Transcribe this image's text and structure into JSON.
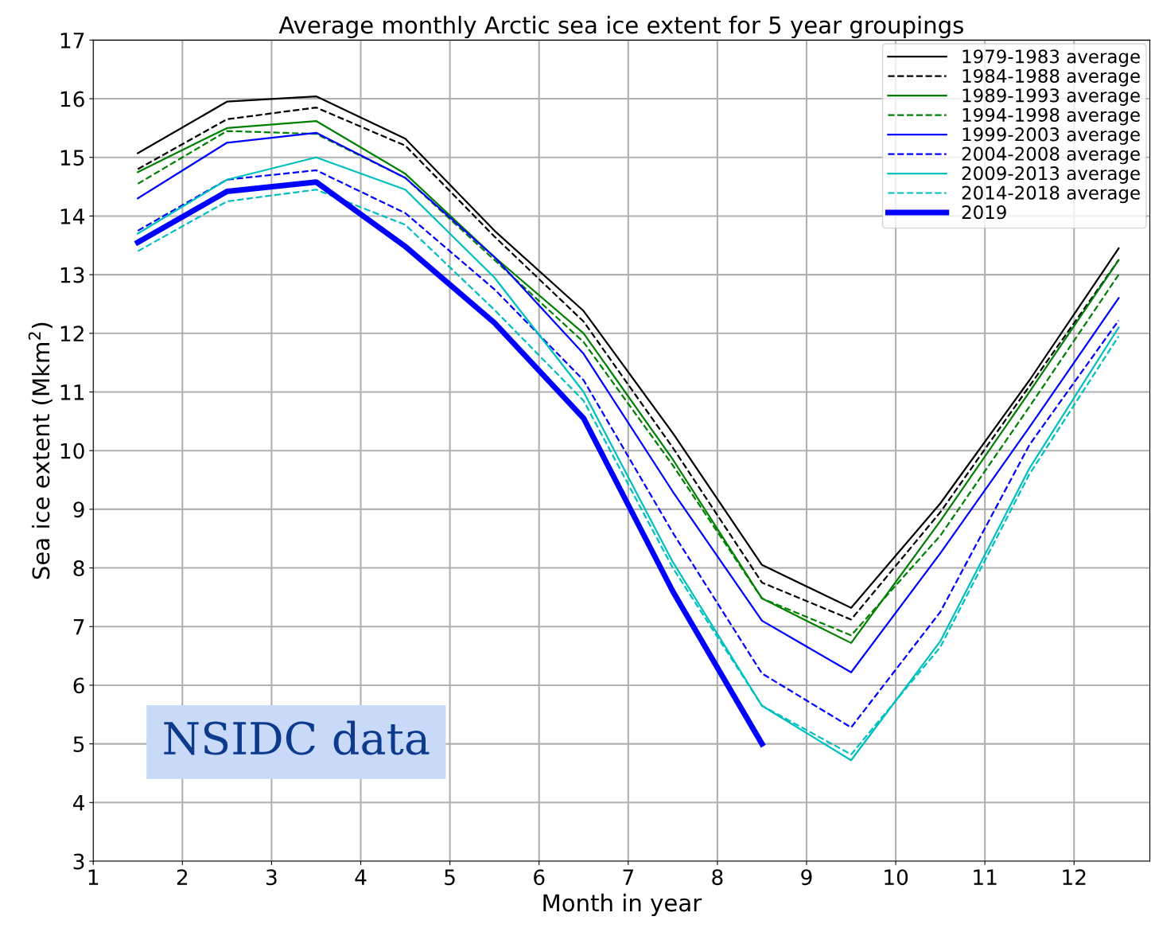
{
  "chart_data": {
    "type": "line",
    "title": "Average monthly Arctic sea ice extent for 5 year groupings",
    "xlabel": "Month in year",
    "ylabel": "Sea ice extent (Mkm$^{2}$)",
    "x": [
      1.5,
      2.5,
      3.5,
      4.5,
      5.5,
      6.5,
      7.5,
      8.5,
      9.5,
      10.5,
      11.5,
      12.5
    ],
    "xlim": [
      1,
      12.85
    ],
    "xticks": [
      1,
      2,
      3,
      4,
      5,
      6,
      7,
      8,
      9,
      10,
      11,
      12
    ],
    "ylim": [
      3,
      17
    ],
    "yticks": [
      3,
      4,
      5,
      6,
      7,
      8,
      9,
      10,
      11,
      12,
      13,
      14,
      15,
      16,
      17
    ],
    "grid": true,
    "legend": "top right",
    "marker": "none",
    "series": [
      {
        "name": "1979-1983 average",
        "color": "#000000",
        "line_style": "solid",
        "values": [
          15.07,
          15.95,
          16.04,
          15.32,
          13.75,
          12.38,
          10.3,
          8.05,
          7.32,
          9.1,
          11.2,
          13.45
        ]
      },
      {
        "name": "1984-1988 average",
        "color": "#000000",
        "line_style": "dashed",
        "values": [
          14.8,
          15.65,
          15.85,
          15.2,
          13.65,
          12.2,
          10.05,
          7.75,
          7.12,
          8.95,
          11.1,
          13.25
        ]
      },
      {
        "name": "1989-1993 average",
        "color": "#008000",
        "line_style": "solid",
        "values": [
          14.75,
          15.5,
          15.62,
          14.72,
          13.3,
          12.0,
          9.85,
          7.48,
          6.72,
          8.8,
          11.0,
          13.25
        ]
      },
      {
        "name": "1994-1998 average",
        "color": "#008000",
        "line_style": "dashed",
        "values": [
          14.55,
          15.45,
          15.4,
          14.65,
          13.25,
          11.85,
          9.75,
          7.48,
          6.85,
          8.55,
          10.75,
          13.0
        ]
      },
      {
        "name": "1999-2003 average",
        "color": "#0000ff",
        "line_style": "solid",
        "values": [
          14.3,
          15.25,
          15.42,
          14.65,
          13.3,
          11.65,
          9.3,
          7.1,
          6.22,
          8.25,
          10.4,
          12.6
        ]
      },
      {
        "name": "2004-2008 average",
        "color": "#0000ff",
        "line_style": "dashed",
        "values": [
          13.75,
          14.62,
          14.78,
          14.05,
          12.75,
          11.2,
          8.6,
          6.2,
          5.28,
          7.25,
          10.1,
          12.22
        ]
      },
      {
        "name": "2009-2013 average",
        "color": "#00bfbf",
        "line_style": "solid",
        "values": [
          13.7,
          14.62,
          15.0,
          14.45,
          12.95,
          11.0,
          8.1,
          5.65,
          4.72,
          6.75,
          9.7,
          12.1
        ]
      },
      {
        "name": "2014-2018 average",
        "color": "#00bfbf",
        "line_style": "dashed",
        "values": [
          13.4,
          14.25,
          14.45,
          13.85,
          12.4,
          10.85,
          8.0,
          5.65,
          4.82,
          6.65,
          9.6,
          11.95
        ]
      },
      {
        "name": "2019",
        "color": "#0000ff",
        "line_style": "solid",
        "values": [
          13.55,
          14.42,
          14.58,
          13.48,
          12.18,
          10.55,
          7.6,
          5.0,
          null,
          null,
          null,
          null
        ]
      }
    ],
    "annotations": [
      "NSIDC data"
    ]
  }
}
